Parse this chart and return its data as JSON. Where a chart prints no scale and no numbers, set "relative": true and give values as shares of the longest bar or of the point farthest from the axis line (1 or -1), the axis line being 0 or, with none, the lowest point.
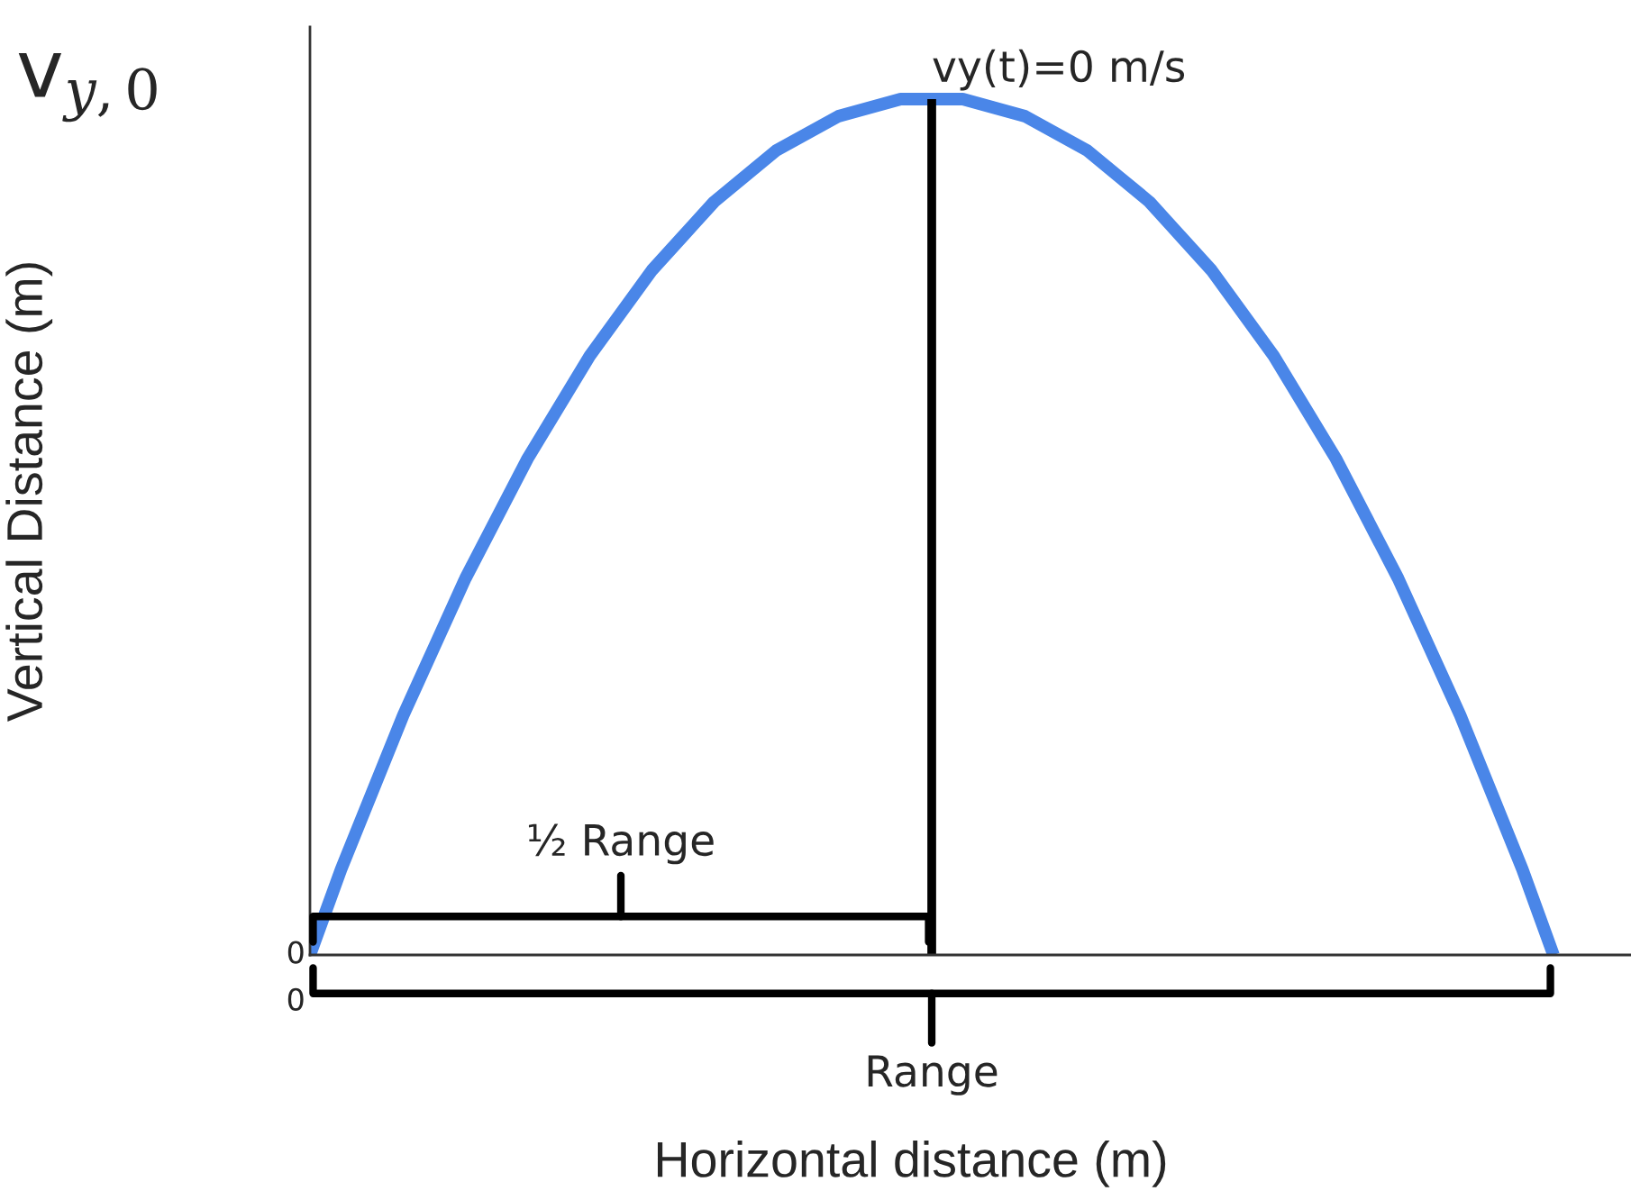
{
  "chart_data": {
    "type": "line",
    "relative": true,
    "xlabel": "Horizontal distance (m)",
    "ylabel": "Vertical Distance (m)",
    "categories": [
      null,
      null,
      null,
      null,
      null,
      null,
      null,
      null,
      null,
      null,
      null,
      null,
      null,
      null,
      null,
      null,
      null,
      null,
      null,
      null,
      null,
      null,
      null,
      null,
      null,
      null,
      null,
      null,
      null,
      null,
      null,
      null,
      null,
      null,
      null,
      null,
      null,
      null,
      null,
      null,
      null
    ],
    "series": [
      {
        "color": "#4a86e8",
        "values": [
          0,
          0.1,
          0.19,
          0.28,
          0.36,
          0.44,
          0.51,
          0.58,
          0.64,
          0.7,
          0.75,
          0.8,
          0.84,
          0.88,
          0.91,
          0.94,
          0.96,
          0.98,
          0.99,
          1.0,
          1,
          1.0,
          0.99,
          0.98,
          0.96,
          0.94,
          0.91,
          0.88,
          0.84,
          0.8,
          0.75,
          0.7,
          0.64,
          0.58,
          0.51,
          0.44,
          0.36,
          0.28,
          0.19,
          0.1,
          0
        ]
      }
    ],
    "annotations": [
      "v$_{y,0}$",
      "½ Range",
      "Range",
      "0",
      "0",
      "vy(t)=0 m/s"
    ],
    "legend": false,
    "marker": "none",
    "line_style": "solid"
  }
}
